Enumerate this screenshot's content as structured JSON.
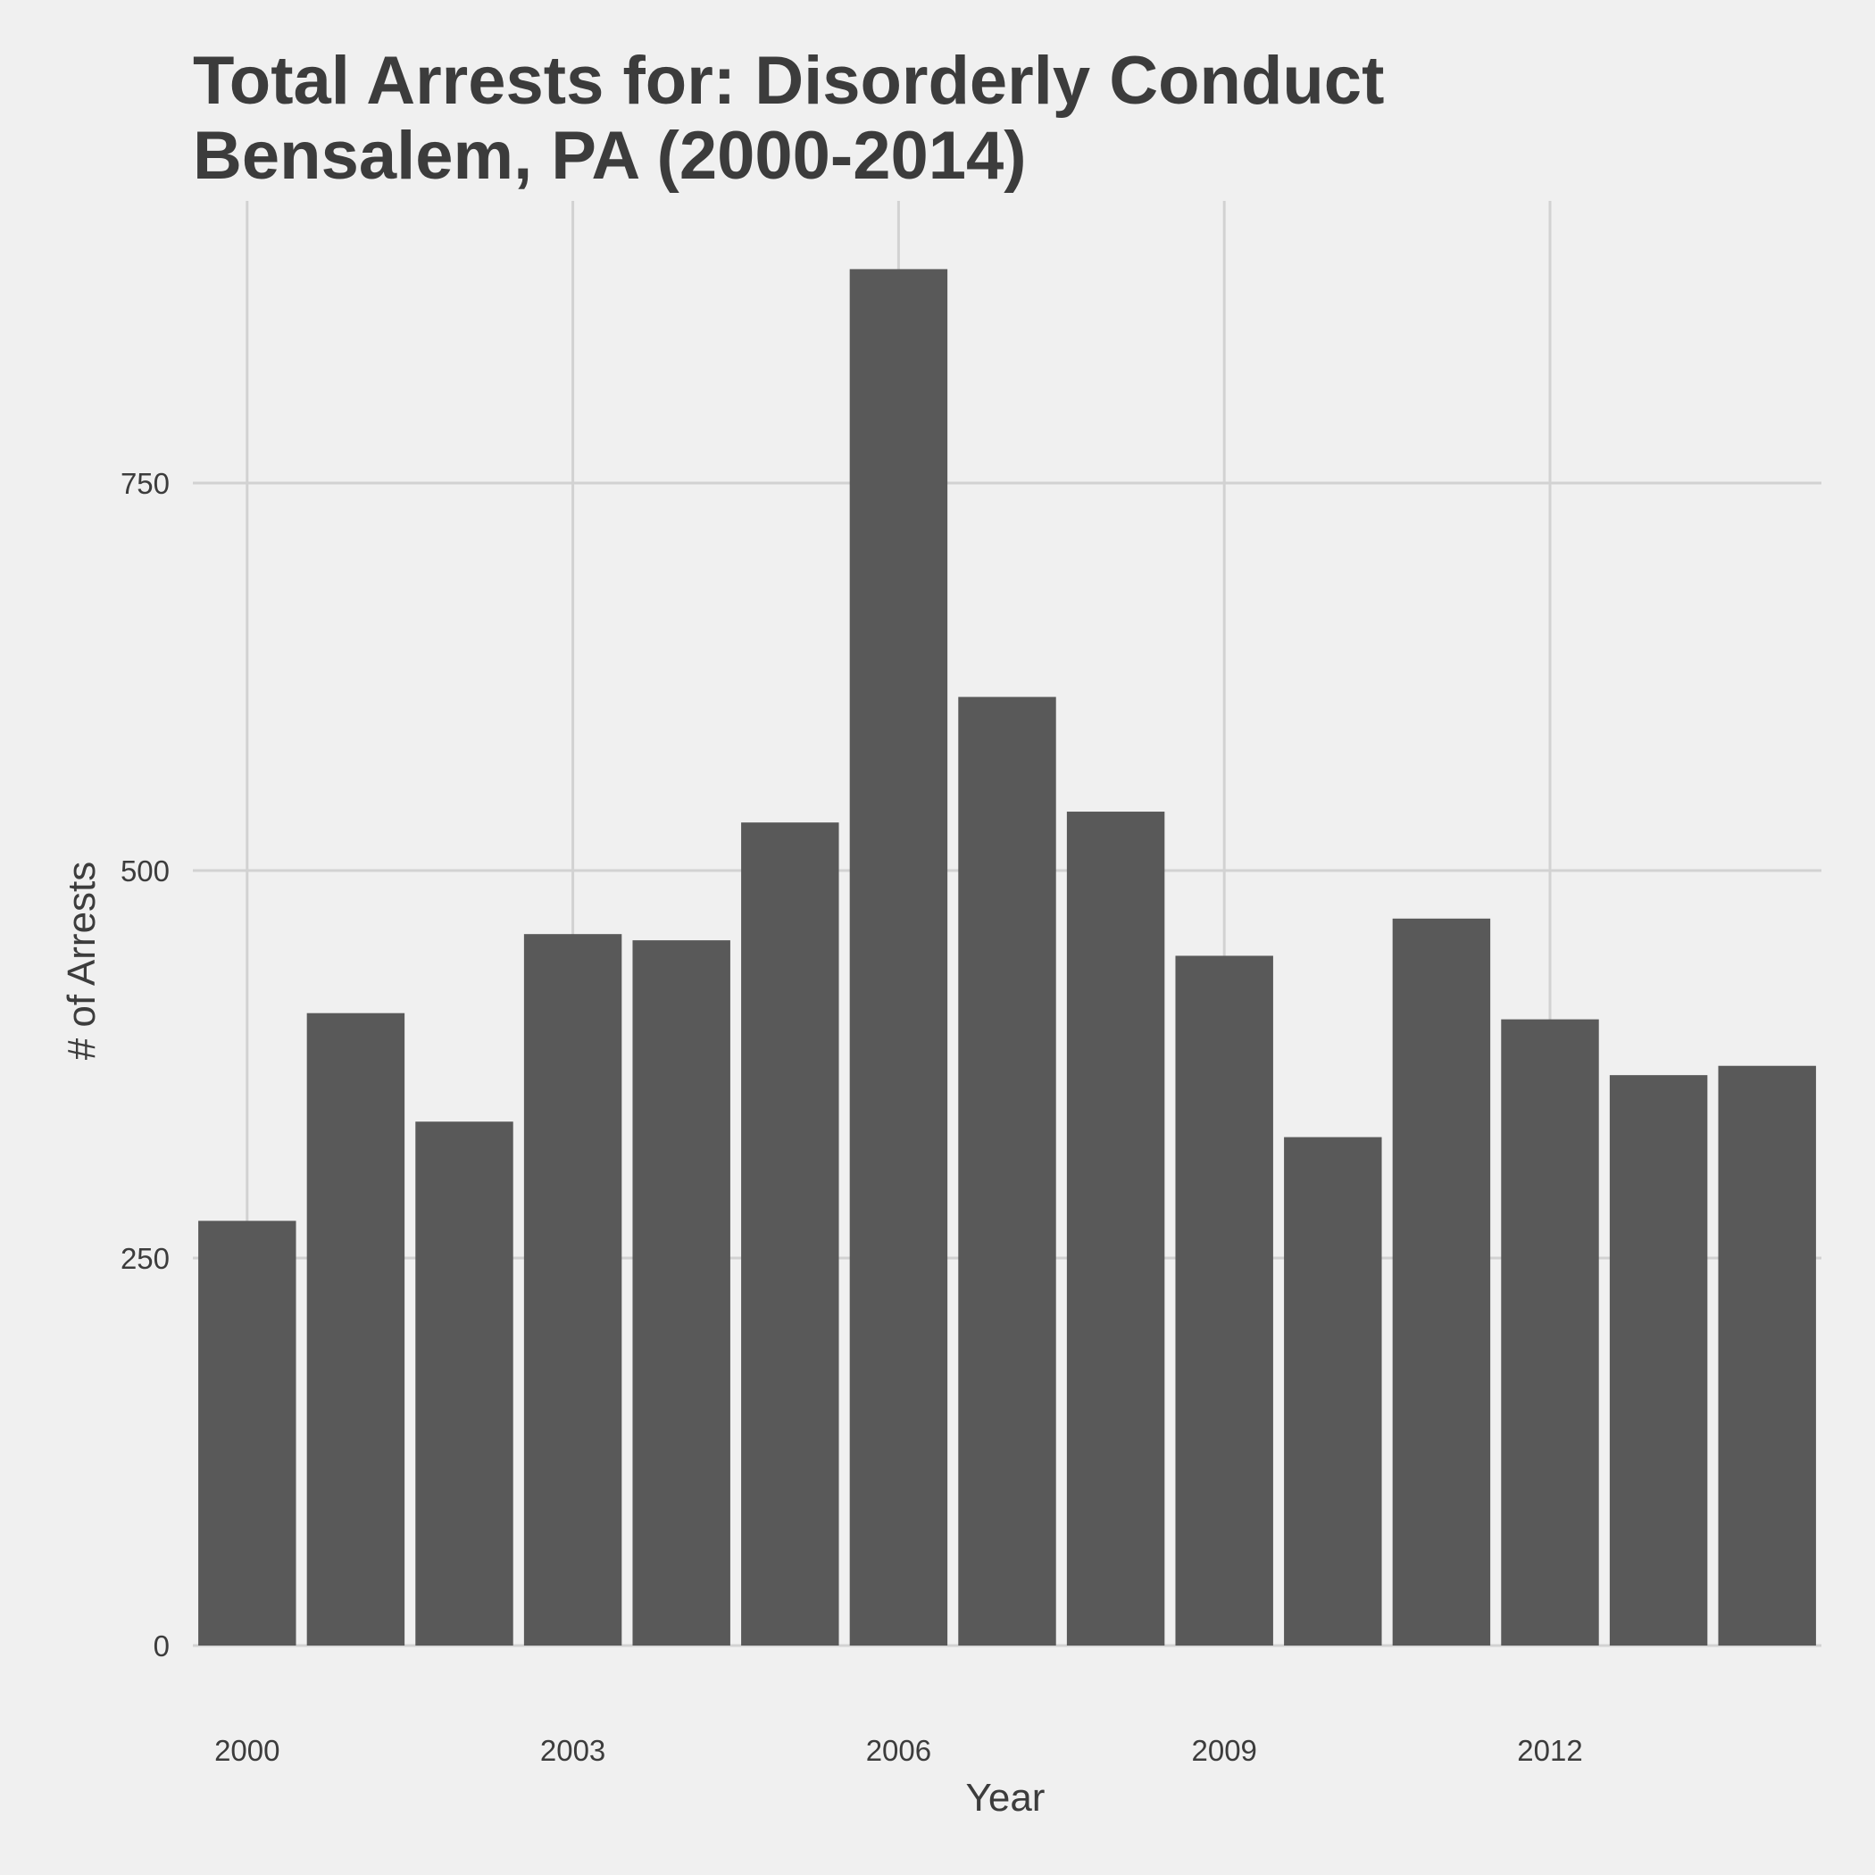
{
  "chart_data": {
    "type": "bar",
    "title_lines": [
      "Total Arrests for: Disorderly Conduct",
      "Bensalem, PA (2000-2014)"
    ],
    "xlabel": "Year",
    "ylabel": "# of Arrests",
    "categories": [
      2000,
      2001,
      2002,
      2003,
      2004,
      2005,
      2006,
      2007,
      2008,
      2009,
      2010,
      2011,
      2012,
      2013,
      2014
    ],
    "values": [
      274,
      408,
      338,
      459,
      455,
      531,
      888,
      612,
      538,
      445,
      328,
      469,
      404,
      368,
      374
    ],
    "x_ticks": [
      2000,
      2003,
      2006,
      2009,
      2012
    ],
    "y_ticks": [
      0,
      250,
      500,
      750
    ],
    "ylim": [
      0,
      910
    ],
    "grid": true,
    "legend": "none",
    "colors": {
      "background": "#f0f0f0",
      "bar": "#595959",
      "grid": "#d2d2d2",
      "text": "#3c3c3c"
    }
  }
}
